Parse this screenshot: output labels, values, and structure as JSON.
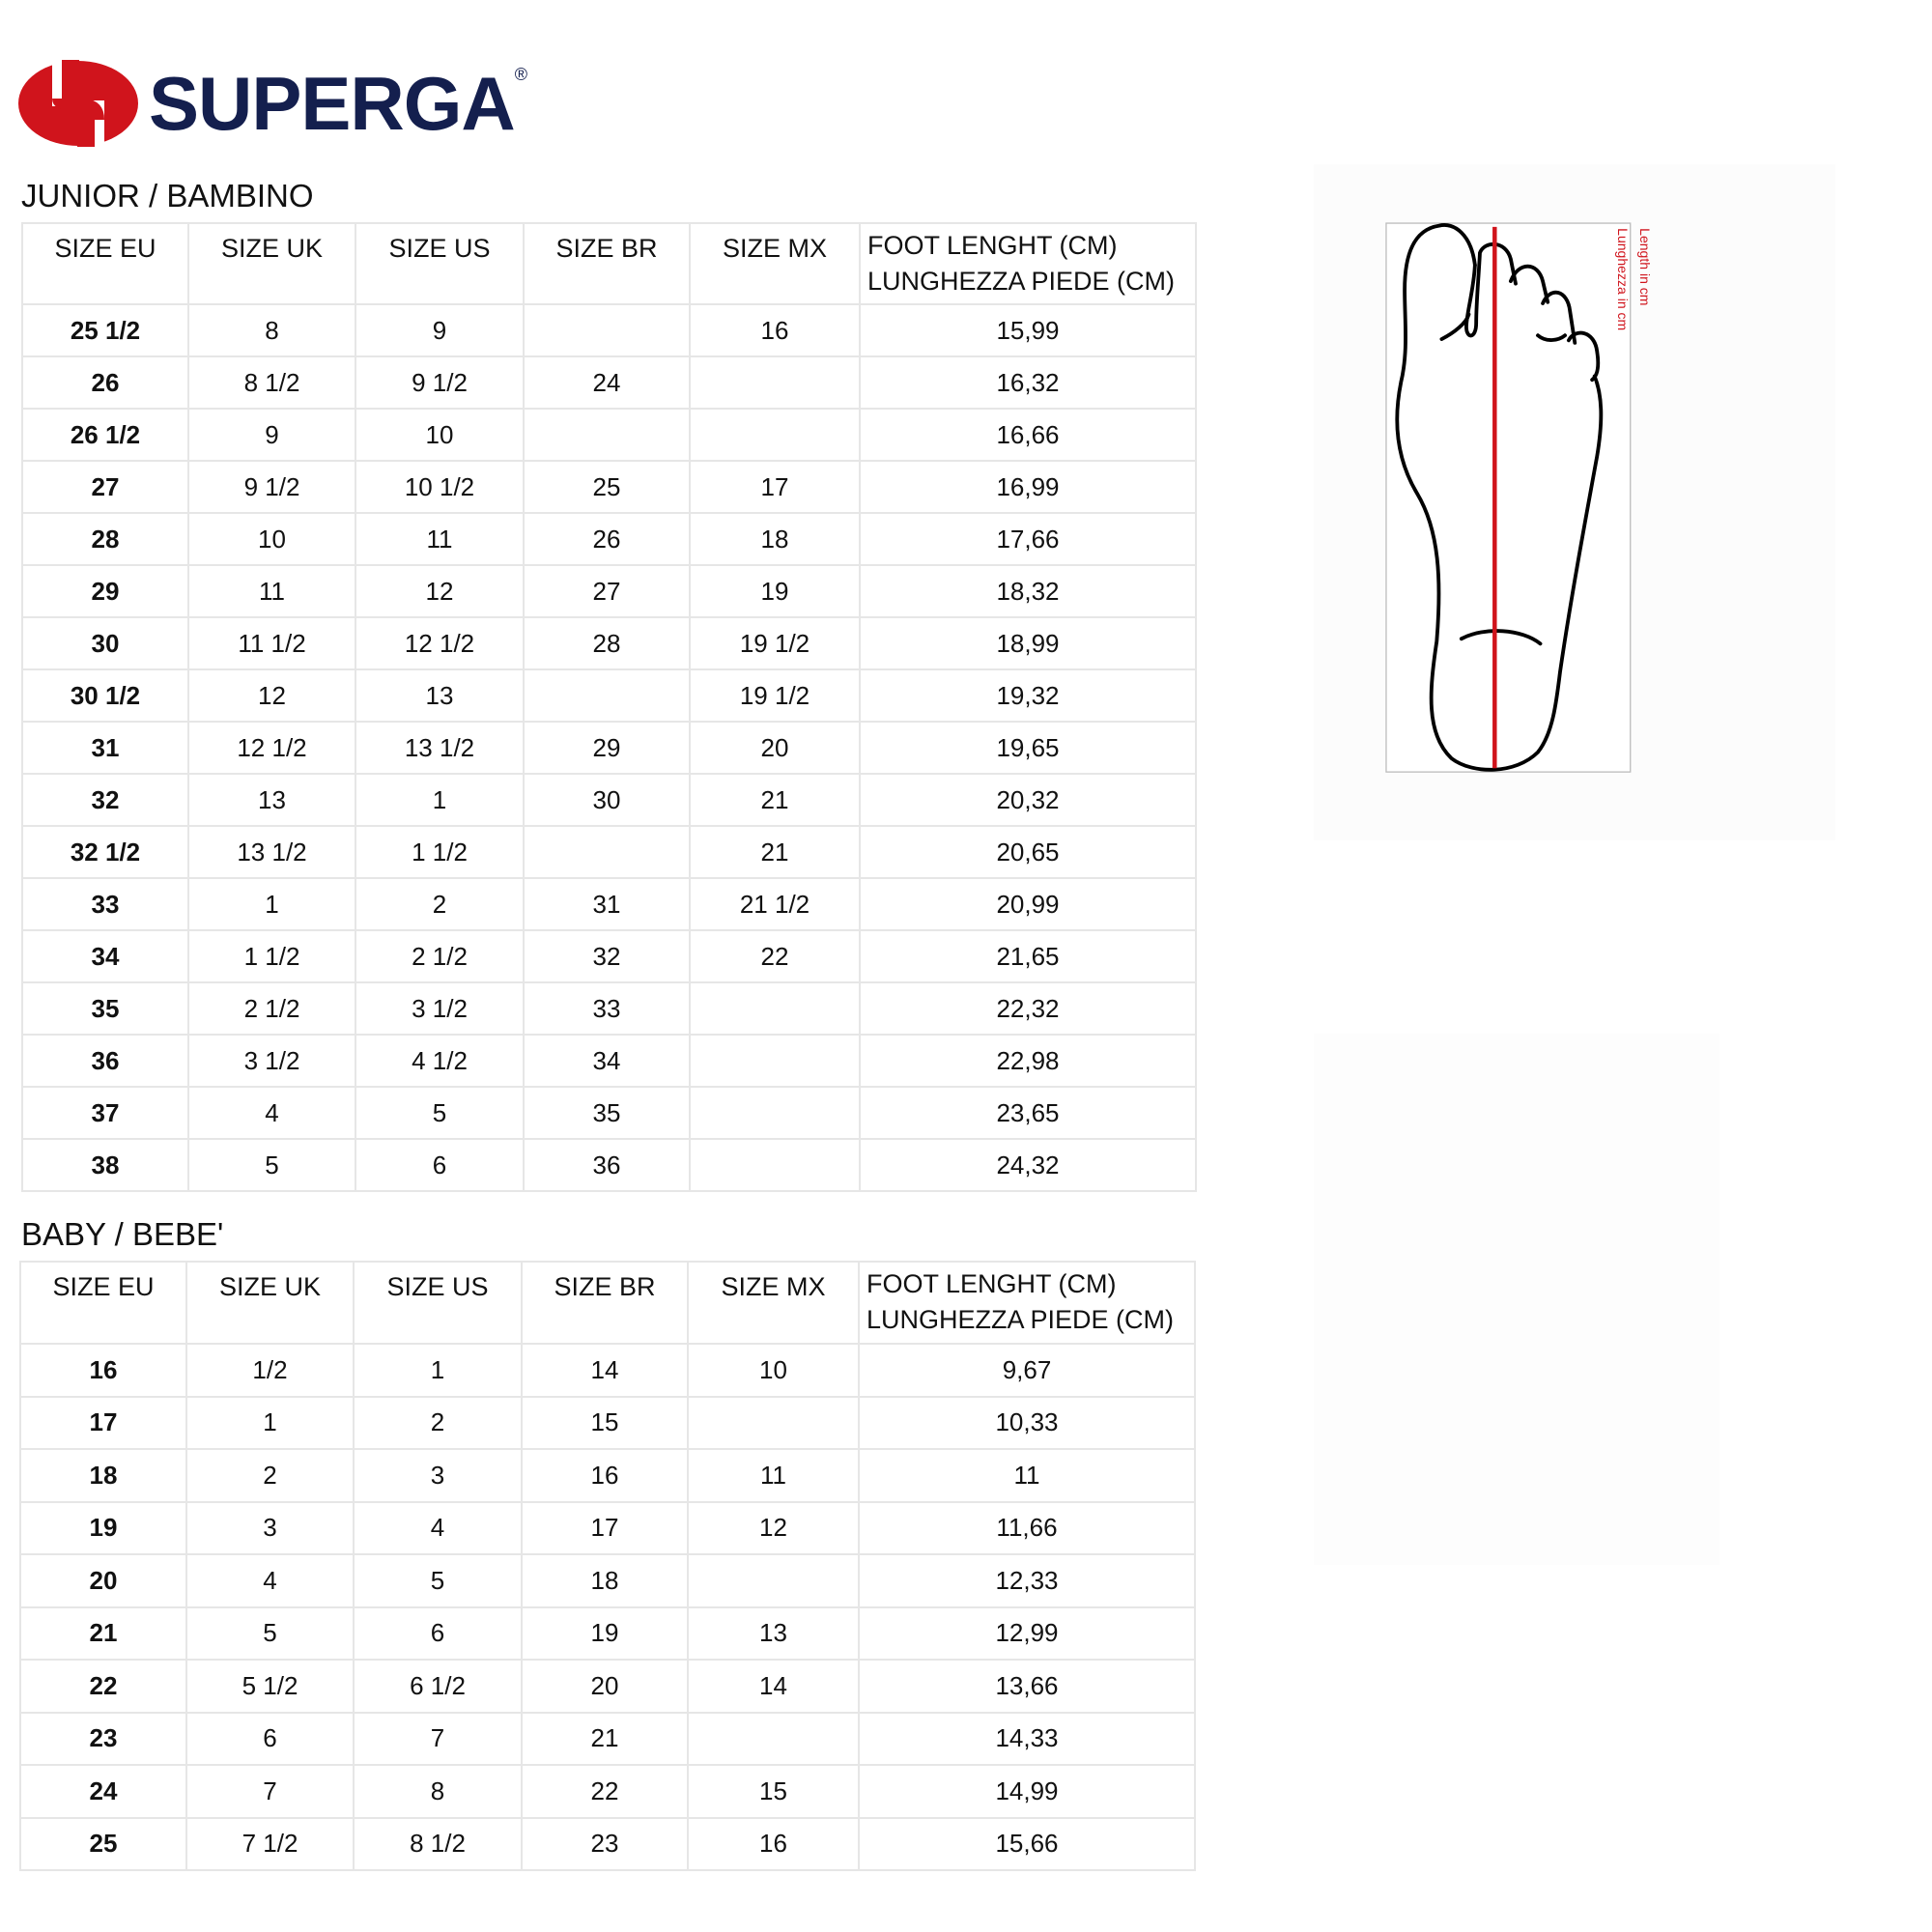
{
  "brand": {
    "name": "SUPERGA",
    "registered": "®",
    "logo_colors": {
      "mark": "#d0141c",
      "text": "#141f4e"
    }
  },
  "columns": [
    "SIZE EU",
    "SIZE UK",
    "SIZE US",
    "SIZE BR",
    "SIZE MX",
    "FOOT LENGHT (CM)",
    "LUNGHEZZA PIEDE (CM)"
  ],
  "junior": {
    "title": "JUNIOR / BAMBINO",
    "rows": [
      [
        "25 1/2",
        "8",
        "9",
        "",
        "16",
        "15,99"
      ],
      [
        "26",
        "8 1/2",
        "9 1/2",
        "24",
        "",
        "16,32"
      ],
      [
        "26 1/2",
        "9",
        "10",
        "",
        "",
        "16,66"
      ],
      [
        "27",
        "9 1/2",
        "10 1/2",
        "25",
        "17",
        "16,99"
      ],
      [
        "28",
        "10",
        "11",
        "26",
        "18",
        "17,66"
      ],
      [
        "29",
        "11",
        "12",
        "27",
        "19",
        "18,32"
      ],
      [
        "30",
        "11 1/2",
        "12 1/2",
        "28",
        "19 1/2",
        "18,99"
      ],
      [
        "30 1/2",
        "12",
        "13",
        "",
        "19 1/2",
        "19,32"
      ],
      [
        "31",
        "12 1/2",
        "13 1/2",
        "29",
        "20",
        "19,65"
      ],
      [
        "32",
        "13",
        "1",
        "30",
        "21",
        "20,32"
      ],
      [
        "32 1/2",
        "13 1/2",
        "1 1/2",
        "",
        "21",
        "20,65"
      ],
      [
        "33",
        "1",
        "2",
        "31",
        "21 1/2",
        "20,99"
      ],
      [
        "34",
        "1 1/2",
        "2 1/2",
        "32",
        "22",
        "21,65"
      ],
      [
        "35",
        "2 1/2",
        "3 1/2",
        "33",
        "",
        "22,32"
      ],
      [
        "36",
        "3 1/2",
        "4 1/2",
        "34",
        "",
        "22,98"
      ],
      [
        "37",
        "4",
        "5",
        "35",
        "",
        "23,65"
      ],
      [
        "38",
        "5",
        "6",
        "36",
        "",
        "24,32"
      ]
    ]
  },
  "baby": {
    "title": "BABY / BEBE'",
    "rows": [
      [
        "16",
        "1/2",
        "1",
        "14",
        "10",
        "9,67"
      ],
      [
        "17",
        "1",
        "2",
        "15",
        "",
        "10,33"
      ],
      [
        "18",
        "2",
        "3",
        "16",
        "11",
        "11"
      ],
      [
        "19",
        "3",
        "4",
        "17",
        "12",
        "11,66"
      ],
      [
        "20",
        "4",
        "5",
        "18",
        "",
        "12,33"
      ],
      [
        "21",
        "5",
        "6",
        "19",
        "13",
        "12,99"
      ],
      [
        "22",
        "5 1/2",
        "6 1/2",
        "20",
        "14",
        "13,66"
      ],
      [
        "23",
        "6",
        "7",
        "21",
        "",
        "14,33"
      ],
      [
        "24",
        "7",
        "8",
        "22",
        "15",
        "14,99"
      ],
      [
        "25",
        "7 1/2",
        "8 1/2",
        "23",
        "16",
        "15,66"
      ]
    ]
  },
  "diagram": {
    "label_en": "Length in cm",
    "label_it": "Lunghezza in cm",
    "accent": "#d0141c"
  }
}
